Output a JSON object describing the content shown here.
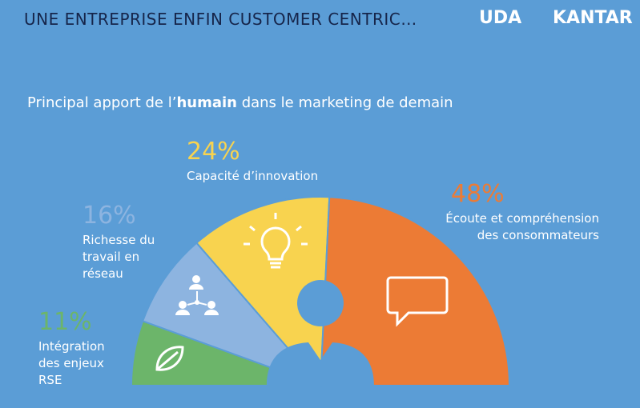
{
  "header": {
    "title": "UNE ENTREPRISE ENFIN CUSTOMER CENTRIC…",
    "logos": [
      "UDA",
      "KANTAR"
    ]
  },
  "chart_data": {
    "type": "pie",
    "layout": "semicircle",
    "subtitle_parts": [
      "Principal apport de l’",
      "humain",
      " dans le marketing de demain"
    ],
    "categories": [
      "Intégration des enjeux RSE",
      "Richesse du travail en réseau",
      "Capacité d’innovation",
      "Écoute et compréhension des consommateurs"
    ],
    "values": [
      11,
      16,
      24,
      48
    ],
    "value_labels": [
      "11%",
      "16%",
      "24%",
      "48%"
    ],
    "colors": [
      "#6cb56a",
      "#8db4e0",
      "#f8d34f",
      "#ec7b35"
    ]
  }
}
